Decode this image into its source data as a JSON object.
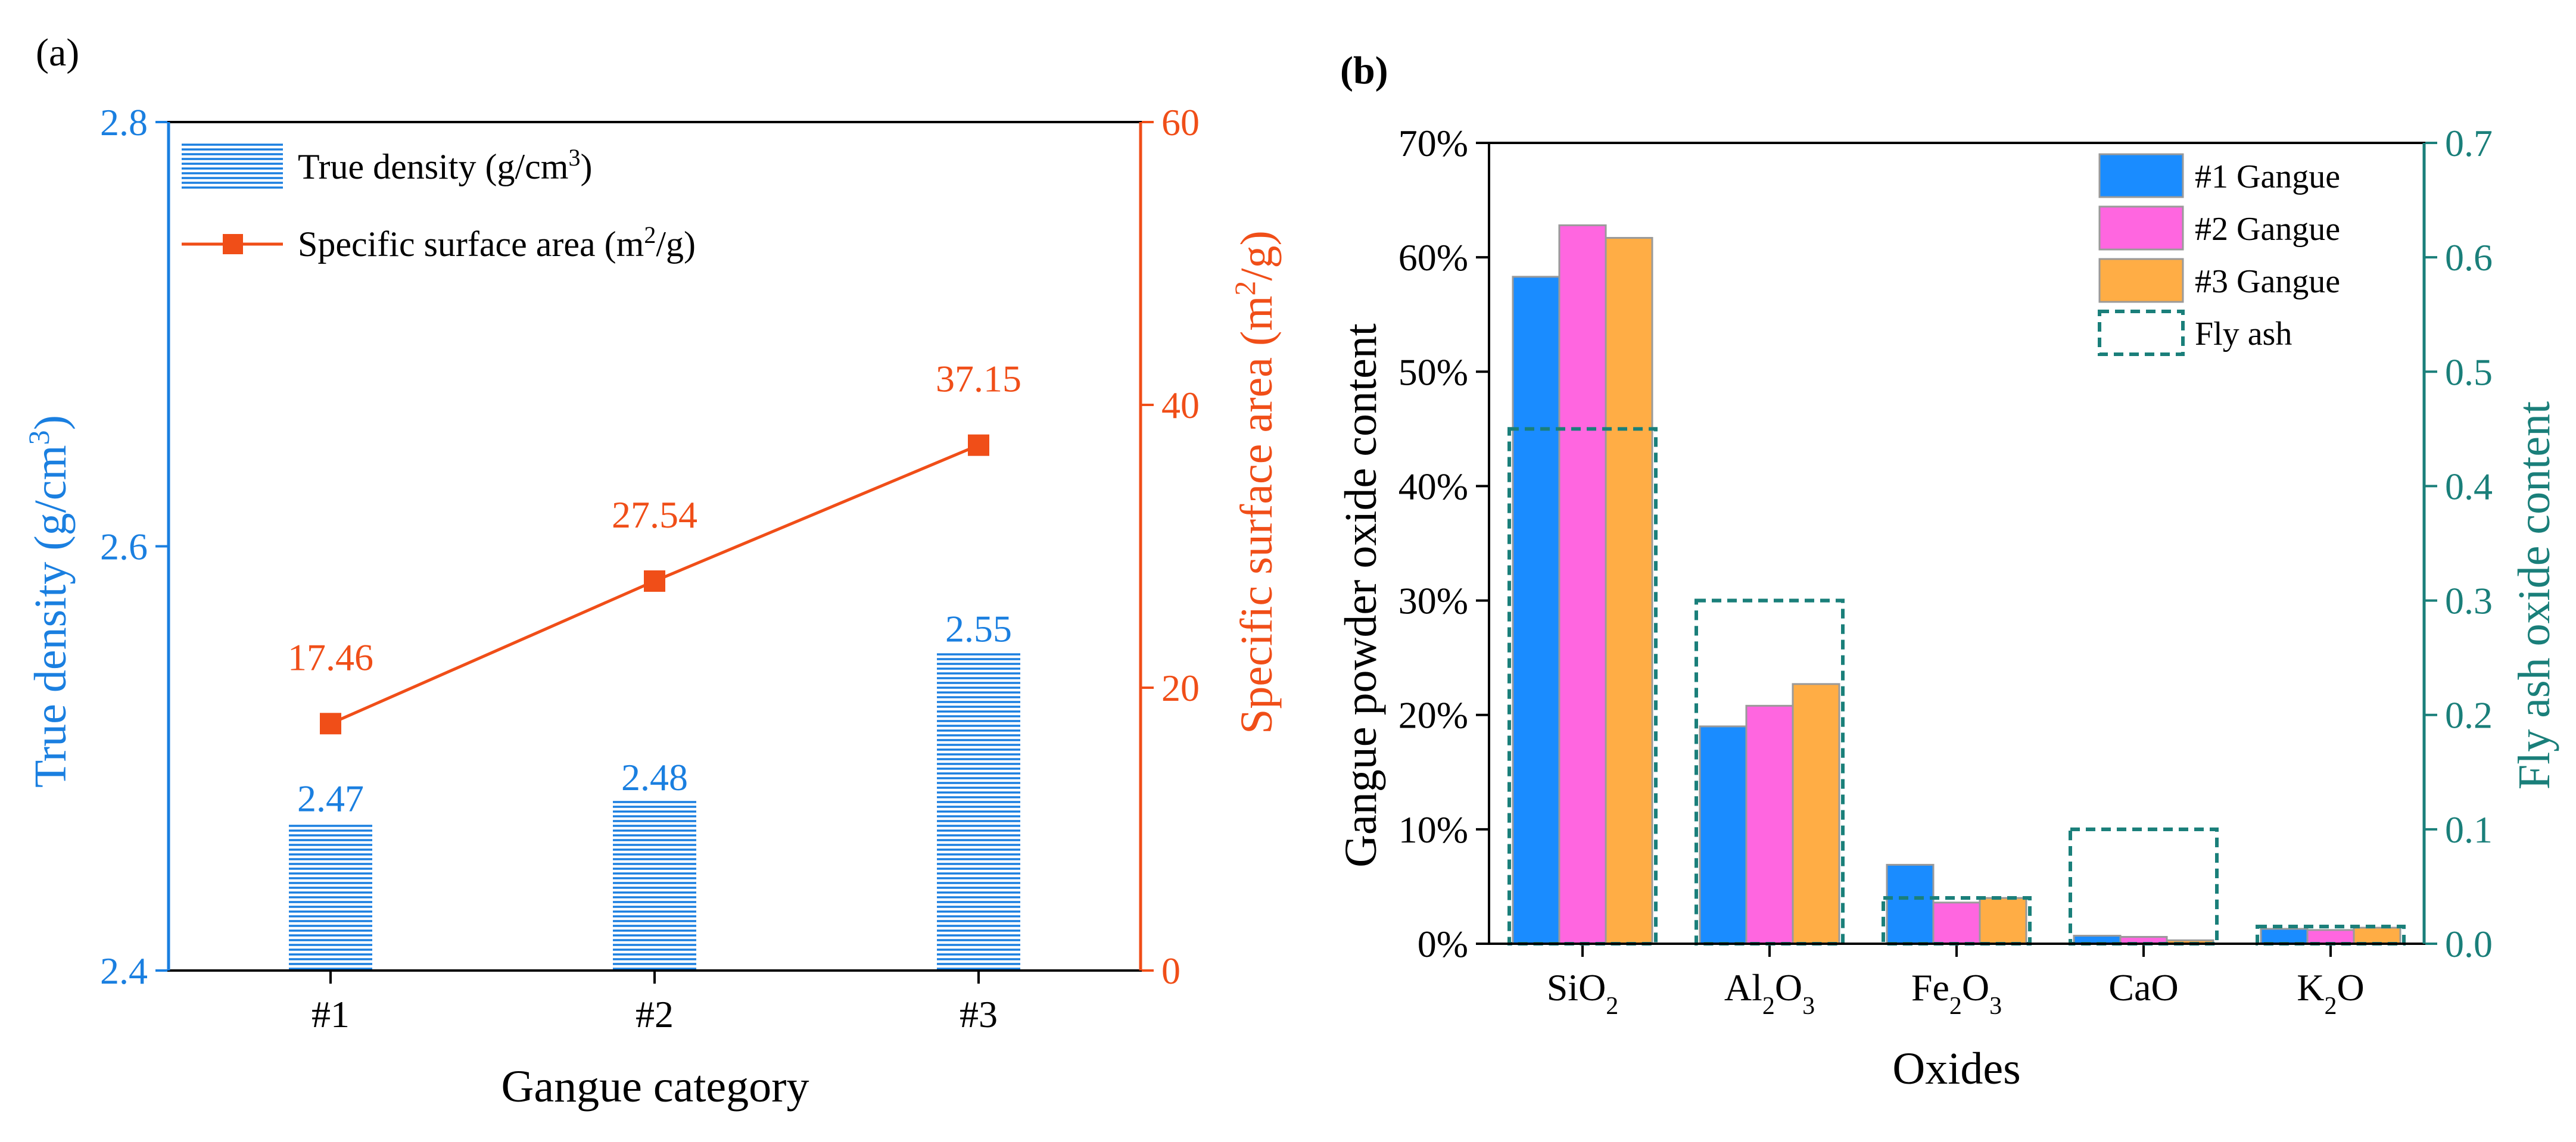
{
  "panel_a": {
    "label": "(a)",
    "legend": {
      "bar_label": "True density (g/cm",
      "bar_label_sup": "3",
      "bar_label_end": ")",
      "line_label": "Specific surface area (m",
      "line_label_sup": "2",
      "line_label_end": "/g)"
    },
    "y_left_label": "True density (g/cm",
    "y_left_label_sup": "3",
    "y_left_label_end": ")",
    "y_right_label": "Specific surface area (m",
    "y_right_label_sup": "2",
    "y_right_label_end": "/g)",
    "x_label": "Gangue category"
  },
  "panel_b": {
    "label": "(b)",
    "y_left_label": "Gangue powder oxide content",
    "y_right_label": "Fly ash oxide content",
    "x_label": "Oxides",
    "legend": [
      "#1 Gangue",
      "#2 Gangue",
      "#3 Gangue",
      "Fly ash"
    ]
  },
  "colors": {
    "left_axis_a": "#1a7fe0",
    "right_axis_a": "#f04e18",
    "bar_a": "#1a7fe0",
    "g1": "#1a8cff",
    "g2": "#ff66e0",
    "g3": "#ffad45",
    "flyash": "#1a7f7a",
    "bar_edge": "#9a9a9a"
  },
  "chart_data": [
    {
      "type": "bar",
      "categories": [
        "#1",
        "#2",
        "#3"
      ],
      "series": [
        {
          "name": "True density (g/cm3)",
          "axis": "left",
          "values": [
            2.47,
            2.48,
            2.55
          ],
          "style": "bar"
        },
        {
          "name": "Specific surface area (m2/g)",
          "axis": "right",
          "values": [
            17.46,
            27.54,
            37.15
          ],
          "style": "line-square-markers"
        }
      ],
      "data_labels_left": [
        "2.47",
        "2.48",
        "2.55"
      ],
      "data_labels_right": [
        "17.46",
        "27.54",
        "37.15"
      ],
      "ylim_left": [
        2.4,
        2.8
      ],
      "yticks_left": [
        "2.4",
        "2.6",
        "2.8"
      ],
      "ylim_right": [
        0,
        60
      ],
      "yticks_right": [
        "0",
        "20",
        "40",
        "60"
      ],
      "xlabel": "Gangue category",
      "grid": false,
      "legend_position": "top-left"
    },
    {
      "type": "bar",
      "categories": [
        "SiO2",
        "Al2O3",
        "Fe2O3",
        "CaO",
        "K2O"
      ],
      "category_tex": [
        [
          "SiO",
          "2",
          ""
        ],
        [
          "Al",
          "2",
          "O",
          "3"
        ],
        [
          "Fe",
          "2",
          "O",
          "3"
        ],
        [
          "CaO"
        ],
        [
          "K",
          "2",
          "O"
        ]
      ],
      "series": [
        {
          "name": "#1 Gangue",
          "axis": "left",
          "values": [
            58.3,
            19.0,
            6.9,
            0.7,
            1.3
          ]
        },
        {
          "name": "#2 Gangue",
          "axis": "left",
          "values": [
            62.8,
            20.8,
            3.6,
            0.6,
            1.2
          ]
        },
        {
          "name": "#3 Gangue",
          "axis": "left",
          "values": [
            61.7,
            22.7,
            4.0,
            0.3,
            1.4
          ]
        },
        {
          "name": "Fly ash",
          "axis": "right",
          "values": [
            0.45,
            0.3,
            0.04,
            0.1,
            0.015
          ],
          "style": "dashed-outline"
        }
      ],
      "ylim_left": [
        0,
        70
      ],
      "yticks_left": [
        "0%",
        "10%",
        "20%",
        "30%",
        "40%",
        "50%",
        "60%",
        "70%"
      ],
      "ylim_right": [
        0,
        0.7
      ],
      "yticks_right": [
        "0.0",
        "0.1",
        "0.2",
        "0.3",
        "0.4",
        "0.5",
        "0.6",
        "0.7"
      ],
      "xlabel": "Oxides",
      "grid": false,
      "legend_position": "top-right"
    }
  ]
}
